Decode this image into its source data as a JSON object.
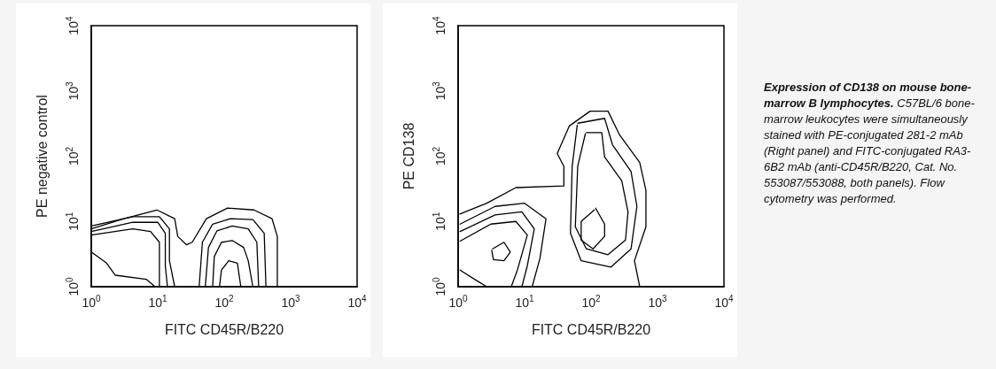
{
  "chart_data": [
    {
      "type": "line",
      "xlabel": "FITC CD45R/B220",
      "ylabel": "PE negative control",
      "log": "xy",
      "marker": "none",
      "line_style": "solid",
      "xlim": [
        1,
        10000
      ],
      "ylim": [
        1,
        10000
      ],
      "xticks": [
        {
          "value": 1,
          "label": "10$^{0}$"
        },
        {
          "value": 10,
          "label": "10$^{1}$"
        },
        {
          "value": 100,
          "label": "10$^{2}$"
        },
        {
          "value": 1000,
          "label": "10$^{3}$"
        },
        {
          "value": 10000,
          "label": "10$^{4}$"
        }
      ],
      "yticks": [
        {
          "value": 1,
          "label": "10$^{0}$"
        },
        {
          "value": 10,
          "label": "10$^{1}$"
        },
        {
          "value": 100,
          "label": "10$^{2}$"
        },
        {
          "value": 1000,
          "label": "10$^{3}$"
        },
        {
          "value": 10000,
          "label": "10$^{4}$"
        }
      ],
      "series": [
        {
          "color": "#000000",
          "x": [
            1,
            3.1,
            9.7,
            18,
            20,
            27,
            33,
            54,
            112,
            280,
            525,
            630,
            630
          ],
          "values": [
            7.7,
            11,
            15,
            11,
            5.9,
            4.4,
            4.8,
            11,
            16,
            15,
            11,
            5.9,
            1
          ]
        },
        {
          "color": "#000000",
          "x": [
            1,
            4.2,
            10.6,
            15,
            15,
            18
          ],
          "values": [
            8.5,
            11.8,
            11.8,
            7.7,
            2.5,
            1
          ]
        },
        {
          "color": "#000000",
          "x": [
            1,
            4.2,
            10,
            13,
            13,
            14
          ],
          "values": [
            7,
            9.7,
            9.7,
            6.6,
            2.1,
            1
          ]
        },
        {
          "color": "#000000",
          "x": [
            1,
            4.2,
            7.8,
            10.6,
            10.6
          ],
          "values": [
            6.2,
            7.7,
            7,
            4.8,
            1
          ]
        },
        {
          "color": "#000000",
          "x": [
            1,
            1.7,
            2.3,
            6.7,
            9.1
          ],
          "values": [
            3.4,
            2.3,
            1.5,
            1.3,
            1
          ]
        },
        {
          "color": "#000000",
          "x": [
            42,
            47,
            67,
            124,
            270,
            400,
            425
          ],
          "values": [
            1,
            4.8,
            9.1,
            11,
            10.7,
            6.6,
            1
          ]
        },
        {
          "color": "#000000",
          "x": [
            52,
            58,
            78,
            132,
            230,
            310,
            330
          ],
          "values": [
            1,
            4,
            7.2,
            8.5,
            7.7,
            4.8,
            1
          ]
        },
        {
          "color": "#000000",
          "x": [
            67,
            71,
            91,
            132,
            196,
            230,
            270
          ],
          "values": [
            1,
            2.9,
            4.8,
            5.1,
            4,
            2.5,
            1
          ]
        },
        {
          "color": "#000000",
          "x": [
            85,
            91,
            117,
            158,
            178
          ],
          "values": [
            1,
            1.8,
            2.5,
            2.3,
            1
          ]
        }
      ]
    },
    {
      "type": "line",
      "xlabel": "FITC CD45R/B220",
      "ylabel": "PE CD138",
      "log": "xy",
      "marker": "none",
      "line_style": "solid",
      "xlim": [
        1,
        10000
      ],
      "ylim": [
        1,
        10000
      ],
      "xticks": [
        {
          "value": 1,
          "label": "10$^{0}$"
        },
        {
          "value": 10,
          "label": "10$^{1}$"
        },
        {
          "value": 100,
          "label": "10$^{2}$"
        },
        {
          "value": 1000,
          "label": "10$^{3}$"
        },
        {
          "value": 10000,
          "label": "10$^{4}$"
        }
      ],
      "yticks": [
        {
          "value": 1,
          "label": "10$^{0}$"
        },
        {
          "value": 10,
          "label": "10$^{1}$"
        },
        {
          "value": 100,
          "label": "10$^{2}$"
        },
        {
          "value": 1000,
          "label": "10$^{3}$"
        },
        {
          "value": 10000,
          "label": "10$^{4}$"
        }
      ],
      "series": [
        {
          "color": "#000000",
          "x": [
            1.06,
            2.7,
            7.4,
            39,
            39,
            31,
            47,
            97,
            180,
            270,
            540,
            670,
            670,
            450,
            540
          ],
          "values": [
            13,
            19,
            33,
            35,
            70,
            110,
            290,
            490,
            490,
            210,
            80,
            30,
            8.3,
            2.5,
            1
          ]
        },
        {
          "color": "#000000",
          "x": [
            63,
            160,
            210,
            400,
            490,
            400,
            200,
            71,
            49,
            52,
            62
          ],
          "values": [
            320,
            380,
            150,
            58,
            17,
            3.8,
            2,
            2.5,
            6.6,
            70,
            300
          ]
        },
        {
          "color": "#000000",
          "x": [
            85,
            145,
            160,
            290,
            360,
            330,
            180,
            85,
            58,
            63,
            82
          ],
          "values": [
            230,
            230,
            97,
            42,
            14,
            5.2,
            3.1,
            3.8,
            8.3,
            70,
            220
          ]
        },
        {
          "color": "#000000",
          "x": [
            117,
            160,
            160,
            107,
            71,
            71,
            112
          ],
          "values": [
            16,
            9.1,
            5.9,
            3.8,
            5.2,
            10,
            15
          ]
        },
        {
          "color": "#000000",
          "x": [
            1.07,
            3.6,
            10,
            21,
            17,
            13
          ],
          "values": [
            9.1,
            17,
            19,
            11,
            2.7,
            1
          ]
        },
        {
          "color": "#000000",
          "x": [
            1.07,
            3.6,
            9.1,
            14,
            11,
            9.1
          ],
          "values": [
            7,
            12.6,
            14,
            7.7,
            2.1,
            1
          ]
        },
        {
          "color": "#000000",
          "x": [
            1.07,
            3.1,
            7.4,
            11,
            7.8,
            6.3
          ],
          "values": [
            5,
            9.1,
            10,
            6.2,
            1.8,
            1
          ]
        },
        {
          "color": "#000000",
          "x": [
            3.3,
            4.9,
            6.1,
            4.9,
            3.4,
            3.2
          ],
          "values": [
            3.8,
            4.8,
            3.4,
            2.5,
            2.6,
            3.6
          ]
        },
        {
          "color": "#000000",
          "x": [
            1.07,
            2,
            2.7
          ],
          "values": [
            1.8,
            1.2,
            1
          ]
        }
      ]
    },
    {
      "type": "other",
      "title": "Expression of CD138 on mouse bone-marrow B lymphocytes.",
      "annotations": [
        "C57BL/6 bone-marrow leukocytes were simultaneously stained with PE-conjugated 281-2 mAb (Right panel) and FITC-conjugated RA3-6B2 mAb (anti-CD45R/B220, Cat. No. 553087/553088, both panels). Flow cytometry was performed."
      ]
    }
  ]
}
